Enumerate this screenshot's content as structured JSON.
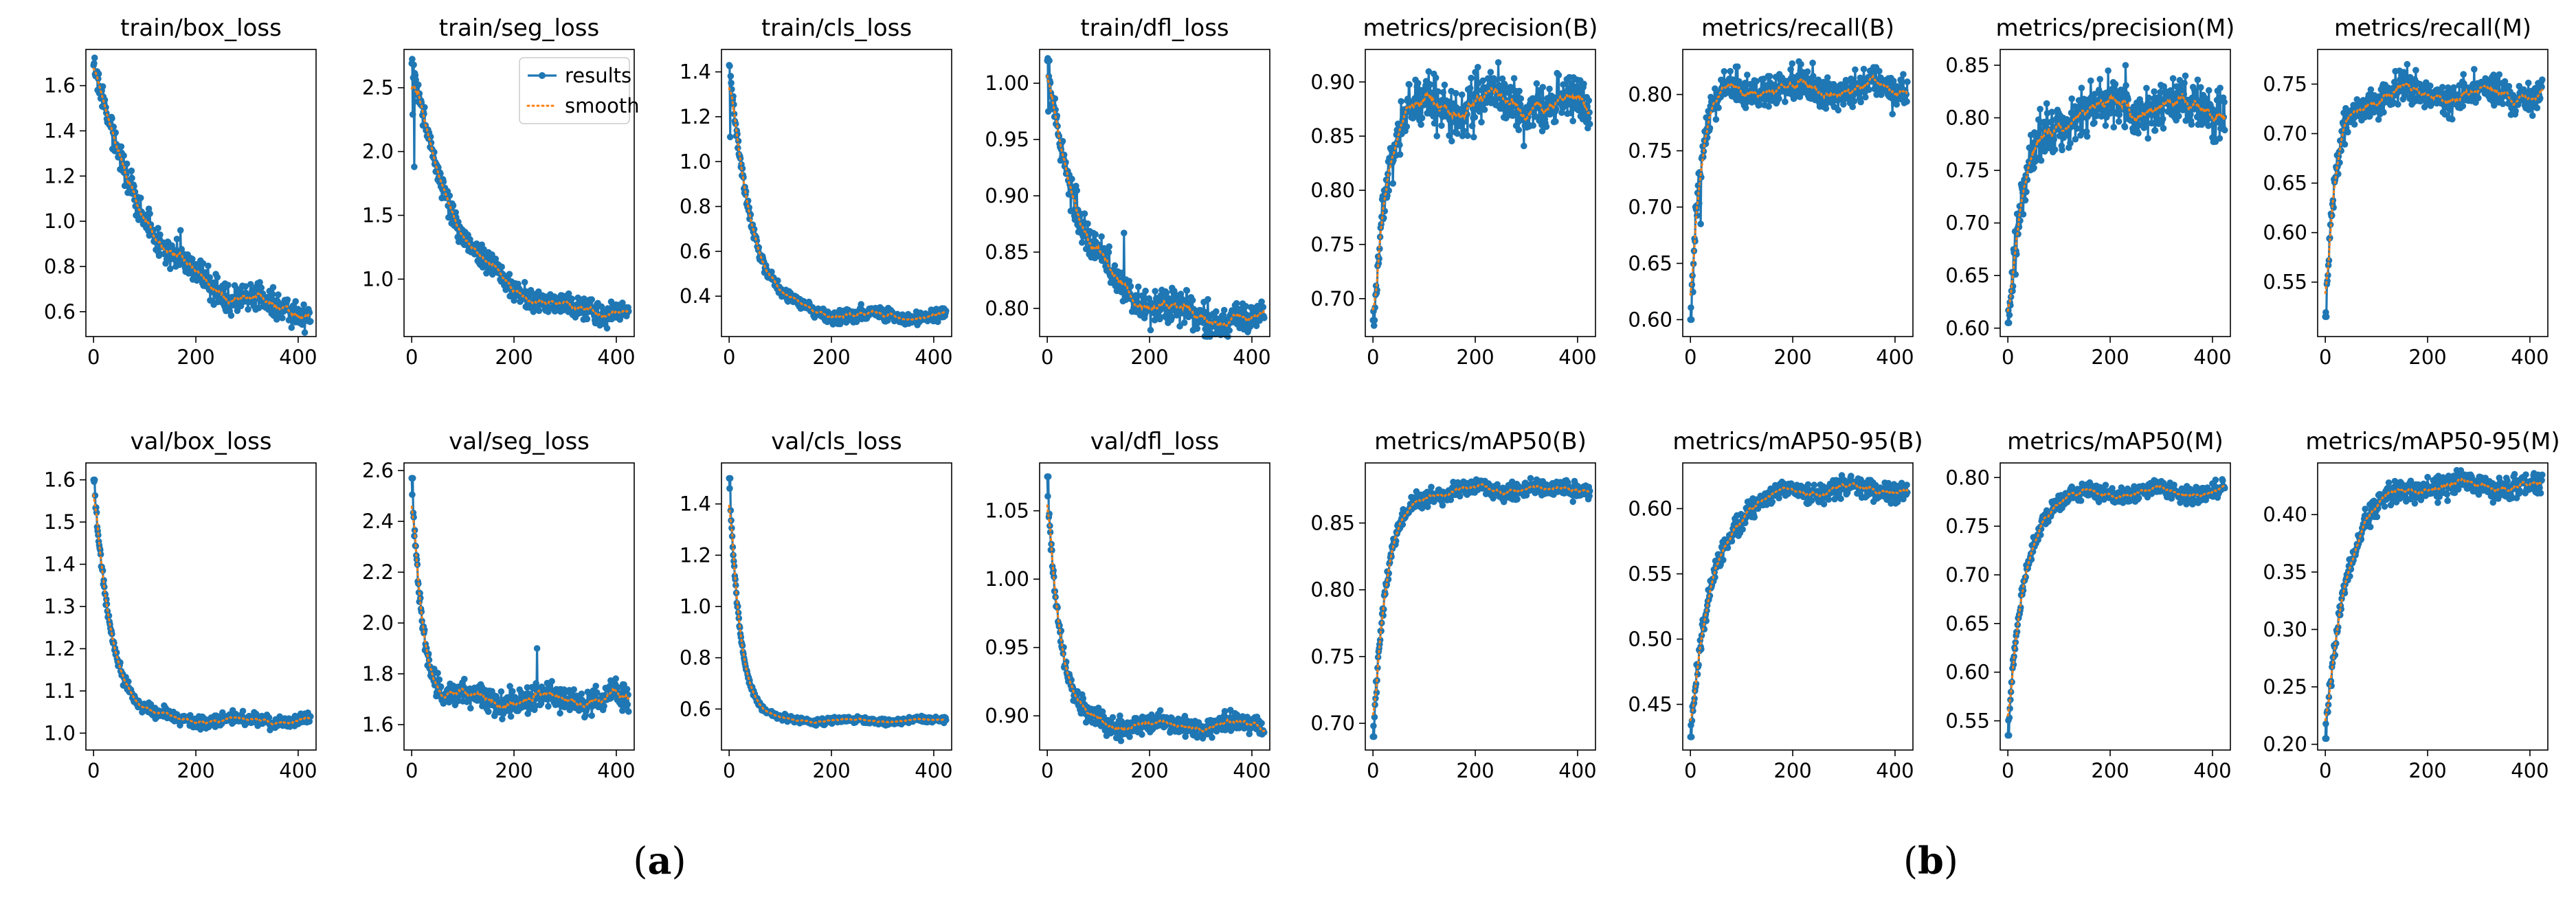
{
  "chart_data": {
    "type": "line",
    "legend": {
      "placement": "top-right",
      "in_subplot": "train/seg_loss",
      "entries": [
        "results",
        "smooth"
      ]
    },
    "series_names": [
      "results",
      "smooth"
    ],
    "colors": {
      "results": "#1f77b4",
      "smooth": "#ff7f0e"
    },
    "panel_labels": [
      {
        "open": "(",
        "letter": "a",
        "close": ")"
      },
      {
        "open": "(",
        "letter": "b",
        "close": ")"
      }
    ],
    "subplots": [
      {
        "title": "train/box_loss",
        "kind": "loss",
        "xlim": [
          -15,
          435
        ],
        "ylim": [
          0.49,
          1.76
        ],
        "x_ticks": [
          0,
          200,
          400
        ],
        "y_ticks": [
          0.6,
          0.8,
          1.0,
          1.2,
          1.4,
          1.6
        ],
        "y_decimals": 1,
        "start": 1.69,
        "end": 0.58,
        "tau": 110,
        "noise": 0.05,
        "spikes": [
          [
            8,
            1.58
          ],
          [
            170,
            0.96
          ]
        ]
      },
      {
        "title": "train/seg_loss",
        "kind": "loss",
        "xlim": [
          -15,
          435
        ],
        "ylim": [
          0.55,
          2.8
        ],
        "x_ticks": [
          0,
          200,
          400
        ],
        "y_ticks": [
          1.0,
          1.5,
          2.0,
          2.5
        ],
        "y_decimals": 1,
        "start": 2.69,
        "end": 0.72,
        "tau": 90,
        "noise": 0.07,
        "spikes": [
          [
            2,
            2.29
          ],
          [
            5,
            1.88
          ]
        ]
      },
      {
        "title": "train/cls_loss",
        "kind": "loss",
        "xlim": [
          -15,
          435
        ],
        "ylim": [
          0.22,
          1.5
        ],
        "x_ticks": [
          0,
          200,
          400
        ],
        "y_ticks": [
          0.4,
          0.6,
          0.8,
          1.0,
          1.2,
          1.4
        ],
        "y_decimals": 1,
        "start": 1.43,
        "end": 0.31,
        "tau": 45,
        "noise": 0.025,
        "spikes": [
          [
            2,
            1.11
          ]
        ]
      },
      {
        "title": "train/dfl_loss",
        "kind": "loss",
        "xlim": [
          -15,
          435
        ],
        "ylim": [
          0.775,
          1.03
        ],
        "x_ticks": [
          0,
          200,
          400
        ],
        "y_ticks": [
          0.8,
          0.85,
          0.9,
          0.95,
          1.0
        ],
        "y_decimals": 2,
        "start": 1.02,
        "end": 0.79,
        "tau": 70,
        "noise": 0.012,
        "spikes": [
          [
            2,
            0.975
          ],
          [
            150,
            0.867
          ]
        ]
      },
      {
        "title": "metrics/precision(B)",
        "kind": "metric",
        "xlim": [
          -15,
          435
        ],
        "ylim": [
          0.665,
          0.93
        ],
        "x_ticks": [
          0,
          200,
          400
        ],
        "y_ticks": [
          0.7,
          0.75,
          0.8,
          0.85,
          0.9
        ],
        "y_decimals": 2,
        "start": 0.68,
        "end": 0.88,
        "tau": 25,
        "noise": 0.018,
        "spikes": [
          [
            3,
            0.68
          ],
          [
            245,
            0.918
          ]
        ]
      },
      {
        "title": "metrics/recall(B)",
        "kind": "metric",
        "xlim": [
          -15,
          435
        ],
        "ylim": [
          0.585,
          0.84
        ],
        "x_ticks": [
          0,
          200,
          400
        ],
        "y_ticks": [
          0.6,
          0.65,
          0.7,
          0.75,
          0.8
        ],
        "y_decimals": 2,
        "start": 0.6,
        "end": 0.805,
        "tau": 18,
        "noise": 0.012,
        "spikes": [
          [
            2,
            0.6
          ],
          [
            20,
            0.685
          ]
        ]
      },
      {
        "title": "metrics/precision(M)",
        "kind": "metric",
        "xlim": [
          -15,
          435
        ],
        "ylim": [
          0.592,
          0.865
        ],
        "x_ticks": [
          0,
          200,
          400
        ],
        "y_ticks": [
          0.6,
          0.65,
          0.7,
          0.75,
          0.8,
          0.85
        ],
        "y_decimals": 2,
        "start": 0.605,
        "end": 0.81,
        "tau": 35,
        "noise": 0.018,
        "spikes": [
          [
            2,
            0.605
          ],
          [
            230,
            0.85
          ]
        ]
      },
      {
        "title": "metrics/recall(M)",
        "kind": "metric",
        "xlim": [
          -15,
          435
        ],
        "ylim": [
          0.495,
          0.785
        ],
        "x_ticks": [
          0,
          200,
          400
        ],
        "y_ticks": [
          0.55,
          0.6,
          0.65,
          0.7,
          0.75
        ],
        "y_decimals": 2,
        "start": 0.515,
        "end": 0.74,
        "tau": 22,
        "noise": 0.013,
        "spikes": [
          [
            2,
            0.515
          ],
          [
            160,
            0.77
          ]
        ]
      },
      {
        "title": "val/box_loss",
        "kind": "loss",
        "xlim": [
          -15,
          435
        ],
        "ylim": [
          0.96,
          1.64
        ],
        "x_ticks": [
          0,
          200,
          400
        ],
        "y_ticks": [
          1.0,
          1.1,
          1.2,
          1.3,
          1.4,
          1.5,
          1.6
        ],
        "y_decimals": 1,
        "start": 1.6,
        "end": 1.03,
        "tau": 35,
        "noise": 0.012,
        "spikes": [
          [
            2,
            1.6
          ]
        ]
      },
      {
        "title": "val/seg_loss",
        "kind": "loss",
        "xlim": [
          -15,
          435
        ],
        "ylim": [
          1.5,
          2.63
        ],
        "x_ticks": [
          0,
          200,
          400
        ],
        "y_ticks": [
          1.6,
          1.8,
          2.0,
          2.2,
          2.4,
          2.6
        ],
        "y_decimals": 1,
        "start": 2.57,
        "end": 1.7,
        "tau": 20,
        "noise": 0.04,
        "spikes": [
          [
            2,
            2.57
          ],
          [
            245,
            1.9
          ]
        ]
      },
      {
        "title": "val/cls_loss",
        "kind": "loss",
        "xlim": [
          -15,
          435
        ],
        "ylim": [
          0.44,
          1.56
        ],
        "x_ticks": [
          0,
          200,
          400
        ],
        "y_ticks": [
          0.6,
          0.8,
          1.0,
          1.2,
          1.4
        ],
        "y_decimals": 1,
        "start": 1.5,
        "end": 0.555,
        "tau": 22,
        "noise": 0.01,
        "spikes": [
          [
            2,
            1.5
          ]
        ]
      },
      {
        "title": "val/dfl_loss",
        "kind": "loss",
        "xlim": [
          -15,
          435
        ],
        "ylim": [
          0.875,
          1.085
        ],
        "x_ticks": [
          0,
          200,
          400
        ],
        "y_ticks": [
          0.9,
          0.95,
          1.0,
          1.05
        ],
        "y_decimals": 2,
        "start": 1.075,
        "end": 0.893,
        "tau": 25,
        "noise": 0.006,
        "spikes": [
          [
            2,
            1.075
          ]
        ]
      },
      {
        "title": "metrics/mAP50(B)",
        "kind": "metric",
        "xlim": [
          -15,
          435
        ],
        "ylim": [
          0.68,
          0.895
        ],
        "x_ticks": [
          0,
          200,
          400
        ],
        "y_ticks": [
          0.7,
          0.75,
          0.8,
          0.85
        ],
        "y_decimals": 2,
        "start": 0.69,
        "end": 0.875,
        "tau": 28,
        "noise": 0.005,
        "spikes": [
          [
            2,
            0.69
          ]
        ]
      },
      {
        "title": "metrics/mAP50-95(B)",
        "kind": "metric",
        "xlim": [
          -15,
          435
        ],
        "ylim": [
          0.415,
          0.635
        ],
        "x_ticks": [
          0,
          200,
          400
        ],
        "y_ticks": [
          0.45,
          0.5,
          0.55,
          0.6
        ],
        "y_decimals": 2,
        "start": 0.425,
        "end": 0.615,
        "tau": 45,
        "noise": 0.006,
        "spikes": [
          [
            2,
            0.425
          ]
        ]
      },
      {
        "title": "metrics/mAP50(M)",
        "kind": "metric",
        "xlim": [
          -15,
          435
        ],
        "ylim": [
          0.52,
          0.815
        ],
        "x_ticks": [
          0,
          200,
          400
        ],
        "y_ticks": [
          0.55,
          0.6,
          0.65,
          0.7,
          0.75,
          0.8
        ],
        "y_decimals": 2,
        "start": 0.535,
        "end": 0.785,
        "tau": 32,
        "noise": 0.007,
        "spikes": [
          [
            2,
            0.535
          ]
        ]
      },
      {
        "title": "metrics/mAP50-95(M)",
        "kind": "metric",
        "xlim": [
          -15,
          435
        ],
        "ylim": [
          0.195,
          0.445
        ],
        "x_ticks": [
          0,
          200,
          400
        ],
        "y_ticks": [
          0.2,
          0.25,
          0.3,
          0.35,
          0.4
        ],
        "y_decimals": 2,
        "start": 0.205,
        "end": 0.425,
        "tau": 40,
        "noise": 0.008,
        "spikes": [
          [
            2,
            0.205
          ]
        ]
      }
    ]
  }
}
